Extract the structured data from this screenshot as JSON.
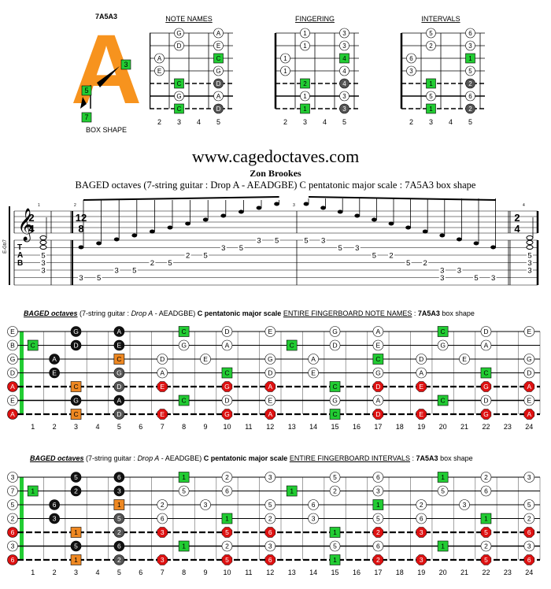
{
  "box": {
    "name": "7A5A3",
    "letter": "A",
    "caption": "BOX SHAPE",
    "markers": [
      "3",
      "5",
      "7"
    ]
  },
  "mini_diagrams": [
    {
      "title": "NOTE NAMES",
      "frets": [
        "2",
        "3",
        "4",
        "5"
      ],
      "rows": [
        [
          null,
          "G",
          null,
          "A"
        ],
        [
          null,
          "D",
          null,
          "E"
        ],
        [
          "A",
          null,
          null,
          "C"
        ],
        [
          "E",
          null,
          null,
          "G"
        ],
        [
          null,
          "C",
          null,
          "D"
        ],
        [
          null,
          "G",
          null,
          "A"
        ],
        [
          null,
          "C",
          null,
          "D"
        ]
      ]
    },
    {
      "title": "FINGERING",
      "frets": [
        "2",
        "3",
        "4",
        "5"
      ],
      "rows": [
        [
          null,
          "1",
          null,
          "3"
        ],
        [
          null,
          "1",
          null,
          "3"
        ],
        [
          "1",
          null,
          null,
          "4"
        ],
        [
          "1",
          null,
          null,
          "4"
        ],
        [
          null,
          "2",
          null,
          "4"
        ],
        [
          null,
          "1",
          null,
          "3"
        ],
        [
          null,
          "1",
          null,
          "3"
        ]
      ]
    },
    {
      "title": "INTERVALS",
      "frets": [
        "2",
        "3",
        "4",
        "5"
      ],
      "rows": [
        [
          null,
          "5",
          null,
          "6"
        ],
        [
          null,
          "2",
          null,
          "3"
        ],
        [
          "6",
          null,
          null,
          "1"
        ],
        [
          "3",
          null,
          null,
          "5"
        ],
        [
          null,
          "1",
          null,
          "2"
        ],
        [
          null,
          "5",
          null,
          "6"
        ],
        [
          null,
          "1",
          null,
          "2"
        ]
      ]
    }
  ],
  "site": "www.cagedoctaves.com",
  "author": "Zon Brookes",
  "subtitle": "BAGED octaves (7-string guitar : Drop A - AEADGBE) C pentatonic major scale : 7A5A3 box shape",
  "tab": {
    "clef_label": "E-Gtr7",
    "time_sig_1": [
      "2",
      "4"
    ],
    "time_sig_2": [
      "12",
      "8"
    ],
    "time_sig_3": [
      "2",
      "4"
    ],
    "measure_numbers": [
      "1",
      "2",
      "3",
      "4"
    ],
    "tab_letters": [
      "T",
      "A",
      "B"
    ],
    "measure1": [
      "5",
      "3",
      "3"
    ],
    "measure2": [
      {
        "s": 6,
        "f": "3"
      },
      {
        "s": 6,
        "f": "5"
      },
      {
        "s": 5,
        "f": "3"
      },
      {
        "s": 5,
        "f": "5"
      },
      {
        "s": 4,
        "f": "2"
      },
      {
        "s": 4,
        "f": "5"
      },
      {
        "s": 3,
        "f": "2"
      },
      {
        "s": 3,
        "f": "5"
      },
      {
        "s": 2,
        "f": "3"
      },
      {
        "s": 2,
        "f": "5"
      },
      {
        "s": 1,
        "f": "3"
      },
      {
        "s": 1,
        "f": "5"
      }
    ],
    "measure3": [
      {
        "s": 1,
        "f": "5"
      },
      {
        "s": 1,
        "f": "3"
      },
      {
        "s": 2,
        "f": "5"
      },
      {
        "s": 2,
        "f": "3"
      },
      {
        "s": 3,
        "f": "5"
      },
      {
        "s": 3,
        "f": "2"
      },
      {
        "s": 4,
        "f": "5"
      },
      {
        "s": 4,
        "f": "2"
      },
      {
        "s": 5,
        "f": "5"
      },
      {
        "s": 5,
        "f": "3"
      },
      {
        "s": 6,
        "f": "5"
      },
      {
        "s": 6,
        "f": "3"
      }
    ],
    "measure3_extra": [
      {
        "s": 5,
        "f": "3"
      },
      {
        "s": 6,
        "f": "3"
      }
    ],
    "measure4": [
      "5",
      "3",
      "3"
    ]
  },
  "boards": [
    {
      "title_pre": "BAGED octaves",
      "title_mid1": " (7-string guitar : ",
      "title_drop": "Drop A",
      "title_mid2": " - AEADGBE) ",
      "title_scale": "C pentatonic major scale",
      "title_entire": "ENTIRE FINGERBOARD NOTE NAMES",
      "title_colon": " : ",
      "title_box": "7A5A3",
      "title_end": " box shape",
      "open": [
        "E",
        "B",
        "G",
        "D",
        "A",
        "E",
        "A"
      ],
      "notes": [
        [
          [
            3,
            "G",
            "black"
          ],
          [
            5,
            "A",
            "black"
          ],
          [
            8,
            "C",
            "green"
          ],
          [
            10,
            "D",
            "white"
          ],
          [
            12,
            "E",
            "white"
          ],
          [
            15,
            "G",
            "white"
          ],
          [
            17,
            "A",
            "white"
          ],
          [
            20,
            "C",
            "green"
          ],
          [
            22,
            "D",
            "white"
          ],
          [
            24,
            "E",
            "white"
          ]
        ],
        [
          [
            1,
            "C",
            "green"
          ],
          [
            3,
            "D",
            "black"
          ],
          [
            5,
            "E",
            "black"
          ],
          [
            8,
            "G",
            "white"
          ],
          [
            10,
            "A",
            "white"
          ],
          [
            13,
            "C",
            "green"
          ],
          [
            15,
            "D",
            "white"
          ],
          [
            17,
            "E",
            "white"
          ],
          [
            20,
            "G",
            "white"
          ],
          [
            22,
            "A",
            "white"
          ]
        ],
        [
          [
            2,
            "A",
            "black"
          ],
          [
            5,
            "C",
            "orange"
          ],
          [
            7,
            "D",
            "white"
          ],
          [
            9,
            "E",
            "white"
          ],
          [
            12,
            "G",
            "white"
          ],
          [
            14,
            "A",
            "white"
          ],
          [
            17,
            "C",
            "green"
          ],
          [
            19,
            "D",
            "white"
          ],
          [
            21,
            "E",
            "white"
          ],
          [
            24,
            "G",
            "white"
          ]
        ],
        [
          [
            2,
            "E",
            "black"
          ],
          [
            5,
            "G",
            "grey"
          ],
          [
            7,
            "A",
            "white"
          ],
          [
            10,
            "C",
            "green"
          ],
          [
            12,
            "D",
            "white"
          ],
          [
            14,
            "E",
            "white"
          ],
          [
            17,
            "G",
            "white"
          ],
          [
            19,
            "A",
            "white"
          ],
          [
            22,
            "C",
            "green"
          ],
          [
            24,
            "D",
            "white"
          ]
        ],
        [
          [
            3,
            "C",
            "orange"
          ],
          [
            5,
            "D",
            "grey"
          ],
          [
            7,
            "E",
            "red"
          ],
          [
            10,
            "G",
            "red"
          ],
          [
            12,
            "A",
            "red"
          ],
          [
            15,
            "C",
            "green"
          ],
          [
            17,
            "D",
            "red"
          ],
          [
            19,
            "E",
            "red"
          ],
          [
            22,
            "G",
            "red"
          ],
          [
            24,
            "A",
            "red"
          ]
        ],
        [
          [
            3,
            "G",
            "black"
          ],
          [
            5,
            "A",
            "black"
          ],
          [
            8,
            "C",
            "green"
          ],
          [
            10,
            "D",
            "white"
          ],
          [
            12,
            "E",
            "white"
          ],
          [
            15,
            "G",
            "white"
          ],
          [
            17,
            "A",
            "white"
          ],
          [
            20,
            "C",
            "green"
          ],
          [
            22,
            "D",
            "white"
          ],
          [
            24,
            "E",
            "white"
          ]
        ],
        [
          [
            3,
            "C",
            "orange"
          ],
          [
            5,
            "D",
            "grey"
          ],
          [
            7,
            "E",
            "red"
          ],
          [
            10,
            "G",
            "red"
          ],
          [
            12,
            "A",
            "red"
          ],
          [
            15,
            "C",
            "green"
          ],
          [
            17,
            "D",
            "red"
          ],
          [
            19,
            "E",
            "red"
          ],
          [
            22,
            "G",
            "red"
          ],
          [
            24,
            "A",
            "red"
          ]
        ]
      ]
    },
    {
      "title_pre": "BAGED octaves",
      "title_mid1": " (7-string guitar : ",
      "title_drop": "Drop A",
      "title_mid2": " - AEADGBE) ",
      "title_scale": "C pentatonic major scale",
      "title_entire": "ENTIRE FINGERBOARD INTERVALS",
      "title_colon": " : ",
      "title_box": "7A5A3",
      "title_end": " box shape",
      "open": [
        "3",
        "7",
        "5",
        "2",
        "6",
        "3",
        "6"
      ],
      "notes": [
        [
          [
            3,
            "5",
            "black"
          ],
          [
            5,
            "6",
            "black"
          ],
          [
            8,
            "1",
            "green"
          ],
          [
            10,
            "2",
            "white"
          ],
          [
            12,
            "3",
            "white"
          ],
          [
            15,
            "5",
            "white"
          ],
          [
            17,
            "6",
            "white"
          ],
          [
            20,
            "1",
            "green"
          ],
          [
            22,
            "2",
            "white"
          ],
          [
            24,
            "3",
            "white"
          ]
        ],
        [
          [
            1,
            "1",
            "green"
          ],
          [
            3,
            "2",
            "black"
          ],
          [
            5,
            "3",
            "black"
          ],
          [
            8,
            "5",
            "white"
          ],
          [
            10,
            "6",
            "white"
          ],
          [
            13,
            "1",
            "green"
          ],
          [
            15,
            "2",
            "white"
          ],
          [
            17,
            "3",
            "white"
          ],
          [
            20,
            "5",
            "white"
          ],
          [
            22,
            "6",
            "white"
          ]
        ],
        [
          [
            2,
            "6",
            "black"
          ],
          [
            5,
            "1",
            "orange"
          ],
          [
            7,
            "2",
            "white"
          ],
          [
            9,
            "3",
            "white"
          ],
          [
            12,
            "5",
            "white"
          ],
          [
            14,
            "6",
            "white"
          ],
          [
            17,
            "1",
            "green"
          ],
          [
            19,
            "2",
            "white"
          ],
          [
            21,
            "3",
            "white"
          ],
          [
            24,
            "5",
            "white"
          ]
        ],
        [
          [
            2,
            "3",
            "black"
          ],
          [
            5,
            "5",
            "grey"
          ],
          [
            7,
            "6",
            "white"
          ],
          [
            10,
            "1",
            "green"
          ],
          [
            12,
            "2",
            "white"
          ],
          [
            14,
            "3",
            "white"
          ],
          [
            17,
            "5",
            "white"
          ],
          [
            19,
            "6",
            "white"
          ],
          [
            22,
            "1",
            "green"
          ],
          [
            24,
            "2",
            "white"
          ]
        ],
        [
          [
            3,
            "1",
            "orange"
          ],
          [
            5,
            "2",
            "grey"
          ],
          [
            7,
            "3",
            "red"
          ],
          [
            10,
            "5",
            "red"
          ],
          [
            12,
            "6",
            "red"
          ],
          [
            15,
            "1",
            "green"
          ],
          [
            17,
            "2",
            "red"
          ],
          [
            19,
            "3",
            "red"
          ],
          [
            22,
            "5",
            "red"
          ],
          [
            24,
            "6",
            "red"
          ]
        ],
        [
          [
            3,
            "5",
            "black"
          ],
          [
            5,
            "6",
            "black"
          ],
          [
            8,
            "1",
            "green"
          ],
          [
            10,
            "2",
            "white"
          ],
          [
            12,
            "3",
            "white"
          ],
          [
            15,
            "5",
            "white"
          ],
          [
            17,
            "6",
            "white"
          ],
          [
            20,
            "1",
            "green"
          ],
          [
            22,
            "2",
            "white"
          ],
          [
            24,
            "3",
            "white"
          ]
        ],
        [
          [
            3,
            "1",
            "orange"
          ],
          [
            5,
            "2",
            "grey"
          ],
          [
            7,
            "3",
            "red"
          ],
          [
            10,
            "5",
            "red"
          ],
          [
            12,
            "6",
            "red"
          ],
          [
            15,
            "1",
            "green"
          ],
          [
            17,
            "2",
            "red"
          ],
          [
            19,
            "3",
            "red"
          ],
          [
            22,
            "5",
            "red"
          ],
          [
            24,
            "6",
            "red"
          ]
        ]
      ]
    }
  ],
  "fret_numbers": [
    "1",
    "2",
    "3",
    "4",
    "5",
    "6",
    "7",
    "8",
    "9",
    "10",
    "11",
    "12",
    "13",
    "14",
    "15",
    "16",
    "17",
    "18",
    "19",
    "20",
    "21",
    "22",
    "23",
    "24"
  ],
  "colors": {
    "green": "#22cc33",
    "orange": "#ee8822",
    "red": "#dd1111",
    "black": "#111111",
    "grey": "#555555",
    "white": "#ffffff"
  }
}
